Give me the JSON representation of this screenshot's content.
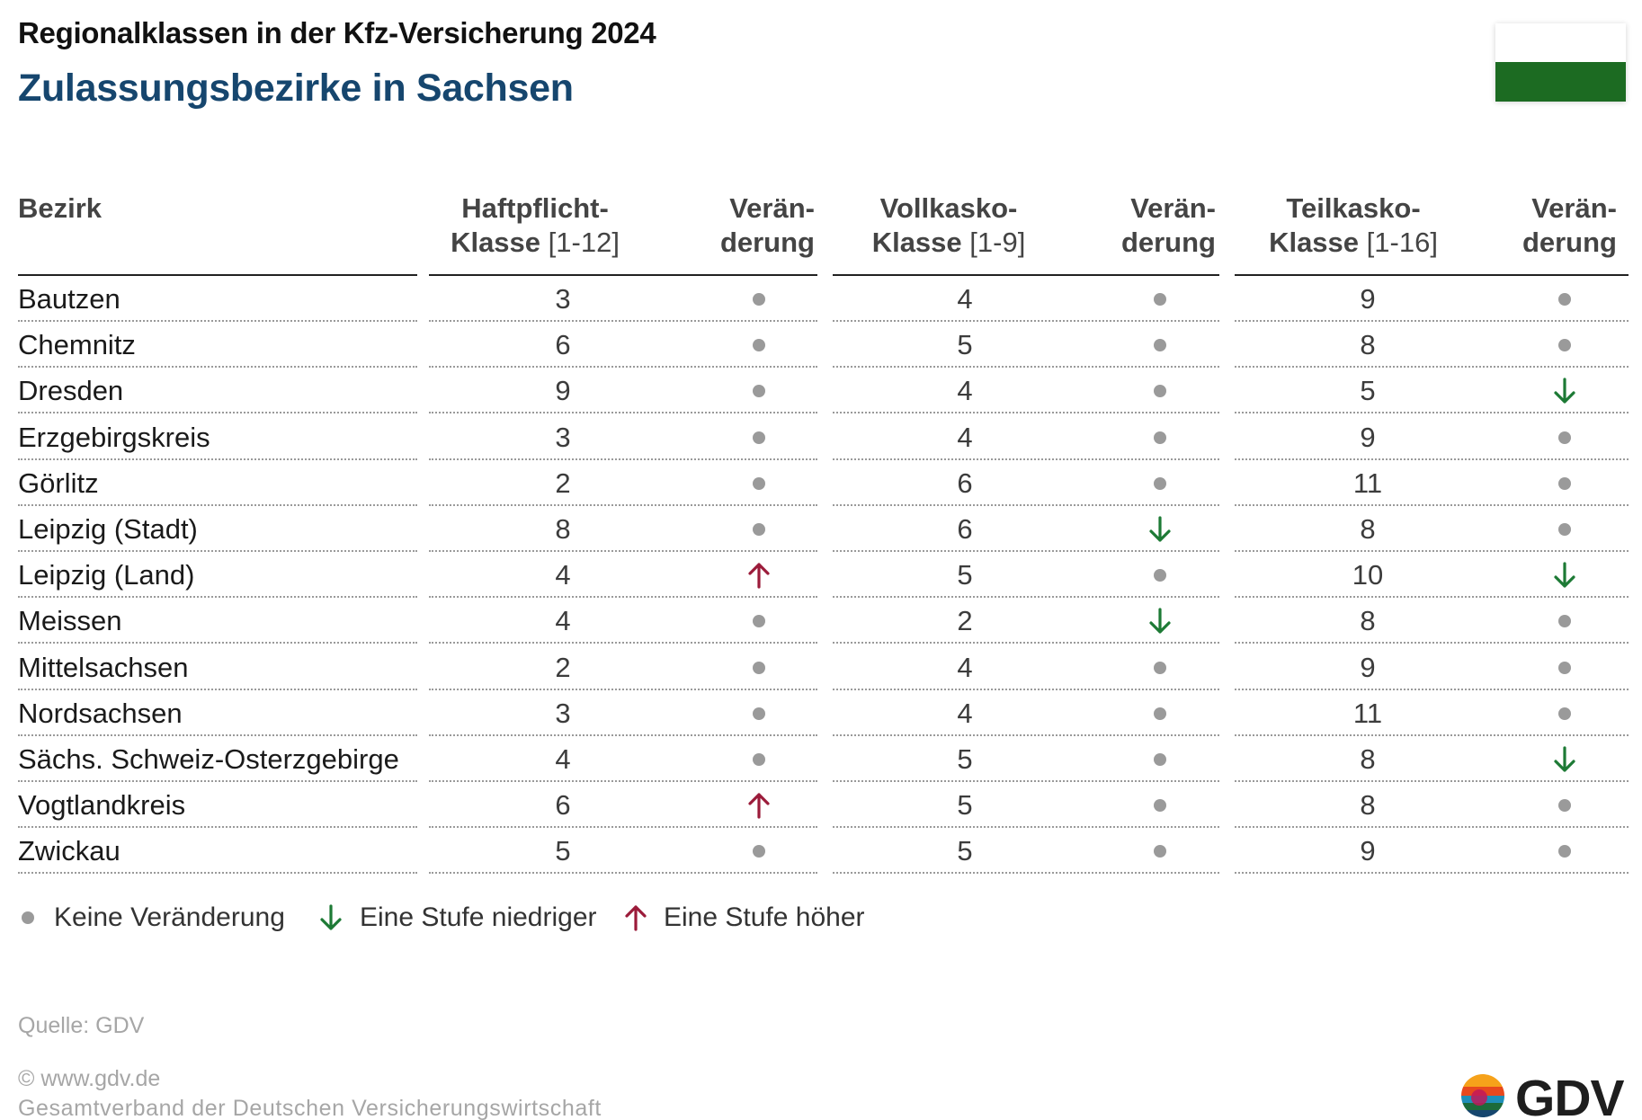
{
  "header": {
    "supertitle": "Regionalklassen in der Kfz-Versicherung 2024",
    "title": "Zulassungsbezirke in Sachsen"
  },
  "columns": {
    "bezirk": "Bezirk",
    "haft_l1": "Haftpflicht-",
    "haft_l2": "Klasse",
    "haft_range": "[1-12]",
    "chg_l1": "Verän-",
    "chg_l2": "derung",
    "voll_l1": "Vollkasko-",
    "voll_l2": "Klasse",
    "voll_range": "[1-9]",
    "teil_l1": "Teilkasko-",
    "teil_l2": "Klasse",
    "teil_range": "[1-16]"
  },
  "chart_data": {
    "type": "table",
    "title": "Zulassungsbezirke in Sachsen",
    "columns": [
      "Bezirk",
      "Haftpflicht-Klasse [1-12]",
      "Veränderung",
      "Vollkasko-Klasse [1-9]",
      "Veränderung",
      "Teilkasko-Klasse [1-16]",
      "Veränderung"
    ],
    "rows": [
      {
        "name": "Bautzen",
        "haft": "3",
        "haft_chg": "none",
        "voll": "4",
        "voll_chg": "none",
        "teil": "9",
        "teil_chg": "none"
      },
      {
        "name": "Chemnitz",
        "haft": "6",
        "haft_chg": "none",
        "voll": "5",
        "voll_chg": "none",
        "teil": "8",
        "teil_chg": "none"
      },
      {
        "name": "Dresden",
        "haft": "9",
        "haft_chg": "none",
        "voll": "4",
        "voll_chg": "none",
        "teil": "5",
        "teil_chg": "down"
      },
      {
        "name": "Erzgebirgskreis",
        "haft": "3",
        "haft_chg": "none",
        "voll": "4",
        "voll_chg": "none",
        "teil": "9",
        "teil_chg": "none"
      },
      {
        "name": "Görlitz",
        "haft": "2",
        "haft_chg": "none",
        "voll": "6",
        "voll_chg": "none",
        "teil": "11",
        "teil_chg": "none"
      },
      {
        "name": "Leipzig (Stadt)",
        "haft": "8",
        "haft_chg": "none",
        "voll": "6",
        "voll_chg": "down",
        "teil": "8",
        "teil_chg": "none"
      },
      {
        "name": "Leipzig (Land)",
        "haft": "4",
        "haft_chg": "up",
        "voll": "5",
        "voll_chg": "none",
        "teil": "10",
        "teil_chg": "down"
      },
      {
        "name": "Meissen",
        "haft": "4",
        "haft_chg": "none",
        "voll": "2",
        "voll_chg": "down",
        "teil": "8",
        "teil_chg": "none"
      },
      {
        "name": "Mittelsachsen",
        "haft": "2",
        "haft_chg": "none",
        "voll": "4",
        "voll_chg": "none",
        "teil": "9",
        "teil_chg": "none"
      },
      {
        "name": "Nordsachsen",
        "haft": "3",
        "haft_chg": "none",
        "voll": "4",
        "voll_chg": "none",
        "teil": "11",
        "teil_chg": "none"
      },
      {
        "name": "Sächs. Schweiz-Osterzgebirge",
        "haft": "4",
        "haft_chg": "none",
        "voll": "5",
        "voll_chg": "none",
        "teil": "8",
        "teil_chg": "down"
      },
      {
        "name": "Vogtlandkreis",
        "haft": "6",
        "haft_chg": "up",
        "voll": "5",
        "voll_chg": "none",
        "teil": "8",
        "teil_chg": "none"
      },
      {
        "name": "Zwickau",
        "haft": "5",
        "haft_chg": "none",
        "voll": "5",
        "voll_chg": "none",
        "teil": "9",
        "teil_chg": "none"
      }
    ]
  },
  "legend": {
    "none": "Keine Veränderung",
    "down": "Eine Stufe niedriger",
    "up": "Eine Stufe höher"
  },
  "colors": {
    "title": "#16466e",
    "down_arrow": "#1d7a35",
    "up_arrow": "#9b1b3a",
    "no_change_dot": "#9a9a9a",
    "flag_white": "#ffffff",
    "flag_green": "#1c6b22"
  },
  "footer": {
    "source": "Quelle: GDV",
    "copyright": "© www.gdv.de",
    "org": "Gesamtverband der Deutschen Versicherungswirtschaft",
    "logo_text": "GDV"
  }
}
